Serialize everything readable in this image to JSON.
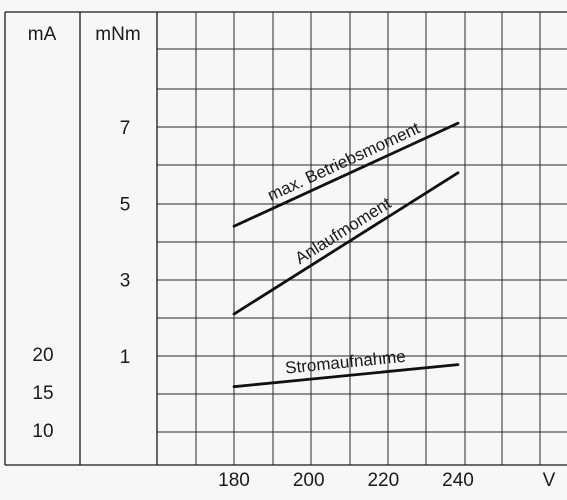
{
  "chart_data": {
    "type": "line",
    "title": "",
    "x": {
      "unit": "V",
      "ticks": [
        180,
        200,
        220,
        240
      ]
    },
    "y_axes": [
      {
        "unit": "mA",
        "ticks": [
          10,
          15,
          20
        ]
      },
      {
        "unit": "mNm",
        "ticks": [
          1,
          3,
          5,
          7
        ]
      }
    ],
    "series": [
      {
        "name": "max. Betriebsmoment",
        "axis": "mNm",
        "x": [
          180,
          240
        ],
        "y": [
          4.4,
          7.1
        ]
      },
      {
        "name": "Anlaufmoment",
        "axis": "mNm",
        "x": [
          180,
          240
        ],
        "y": [
          2.1,
          5.8
        ]
      },
      {
        "name": "Stromaufnahme",
        "axis": "mA",
        "x": [
          180,
          240
        ],
        "y": [
          15.7,
          18.6
        ]
      }
    ],
    "grid": true
  }
}
